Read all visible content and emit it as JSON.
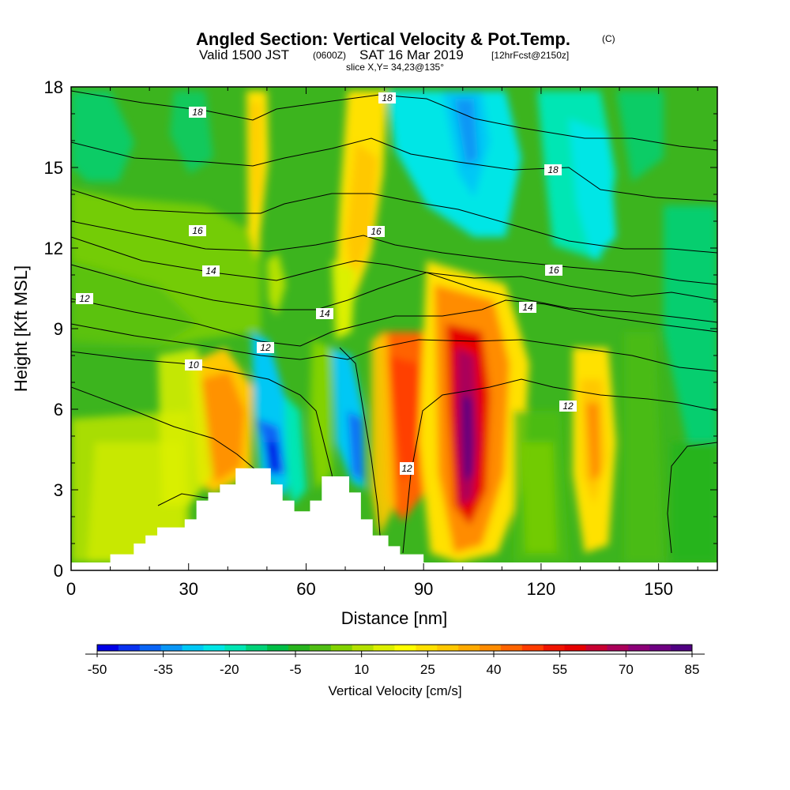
{
  "header": {
    "title_main": "Angled Section: Vertical Velocity & Pot.Temp.",
    "copyright": "(C)",
    "valid_prefix": "Valid 1500 JST",
    "valid_utc": "(0600Z)",
    "valid_date": "SAT 16 Mar 2019",
    "forecast": "[12hrFcst@2150z]",
    "slice": "slice X,Y= 34,23@135°"
  },
  "chart_data": {
    "type": "heatmap",
    "xlabel": "Distance [nm]",
    "ylabel": "Height [Kft MSL]",
    "xlim": [
      0,
      165
    ],
    "ylim": [
      0,
      18
    ],
    "x_ticks": [
      "0",
      "30",
      "60",
      "90",
      "120",
      "150"
    ],
    "x_tick_values": [
      0,
      30,
      60,
      90,
      120,
      150
    ],
    "y_ticks": [
      "0",
      "3",
      "6",
      "9",
      "12",
      "15",
      "18"
    ],
    "y_tick_values": [
      0,
      3,
      6,
      9,
      12,
      15,
      18
    ],
    "grid": false,
    "colorbar": {
      "label": "Vertical Velocity [cm/s]",
      "levels": [
        -50,
        -45,
        -40,
        -35,
        -30,
        -25,
        -20,
        -15,
        -10,
        -5,
        0,
        5,
        10,
        15,
        20,
        25,
        30,
        35,
        40,
        45,
        50,
        55,
        60,
        65,
        70,
        75,
        80,
        85
      ],
      "tick_labels": [
        "-50",
        "-35",
        "-20",
        "-5",
        "10",
        "25",
        "40",
        "55",
        "70",
        "85"
      ],
      "tick_values": [
        -50,
        -35,
        -20,
        -5,
        10,
        25,
        40,
        55,
        70,
        85
      ],
      "colors": [
        "#0000e6",
        "#0a32f0",
        "#0a64f5",
        "#0a96f5",
        "#00c8f5",
        "#00e6e6",
        "#00e6b4",
        "#00d278",
        "#00be46",
        "#28b41e",
        "#50be14",
        "#82d200",
        "#b4e100",
        "#dcf000",
        "#ffff00",
        "#ffe100",
        "#ffc800",
        "#ffaa00",
        "#ff8c00",
        "#ff6400",
        "#ff3c00",
        "#f01400",
        "#e60000",
        "#c80032",
        "#aa005a",
        "#8c0078",
        "#6e0082",
        "#500082"
      ]
    },
    "series_potential_temperature_contours": {
      "units": "theta label",
      "labels": [
        {
          "text": "18",
          "x": 32,
          "y": 17.4
        },
        {
          "text": "18",
          "x": 81,
          "y": 17.7
        },
        {
          "text": "18",
          "x": 124,
          "y": 15.0
        },
        {
          "text": "16",
          "x": 32,
          "y": 12.8
        },
        {
          "text": "16",
          "x": 78,
          "y": 12.7
        },
        {
          "text": "16",
          "x": 124,
          "y": 11.5
        },
        {
          "text": "14",
          "x": 36,
          "y": 11.5
        },
        {
          "text": "14",
          "x": 65,
          "y": 9.8
        },
        {
          "text": "14",
          "x": 117,
          "y": 10.0
        },
        {
          "text": "12",
          "x": 3,
          "y": 10.3
        },
        {
          "text": "12",
          "x": 50,
          "y": 8.5
        },
        {
          "text": "12",
          "x": 86,
          "y": 4.0
        },
        {
          "text": "12",
          "x": 127,
          "y": 6.2
        },
        {
          "text": "10",
          "x": 31,
          "y": 7.7
        }
      ]
    },
    "terrain_profile": [
      [
        10,
        0.3
      ],
      [
        10,
        0.6
      ],
      [
        16,
        0.6
      ],
      [
        16,
        1.0
      ],
      [
        19,
        1.0
      ],
      [
        19,
        1.3
      ],
      [
        22,
        1.3
      ],
      [
        22,
        1.6
      ],
      [
        29,
        1.6
      ],
      [
        29,
        1.9
      ],
      [
        32,
        1.9
      ],
      [
        32,
        2.6
      ],
      [
        35,
        2.6
      ],
      [
        35,
        2.9
      ],
      [
        38,
        2.9
      ],
      [
        38,
        3.2
      ],
      [
        42,
        3.2
      ],
      [
        42,
        3.8
      ],
      [
        51,
        3.8
      ],
      [
        51,
        3.2
      ],
      [
        54,
        3.2
      ],
      [
        54,
        2.6
      ],
      [
        57,
        2.6
      ],
      [
        57,
        2.2
      ],
      [
        61,
        2.2
      ],
      [
        61,
        2.6
      ],
      [
        64,
        2.6
      ],
      [
        64,
        3.5
      ],
      [
        71,
        3.5
      ],
      [
        71,
        2.9
      ],
      [
        74,
        2.9
      ],
      [
        74,
        1.9
      ],
      [
        77,
        1.9
      ],
      [
        77,
        1.3
      ],
      [
        81,
        1.3
      ],
      [
        81,
        0.9
      ],
      [
        84,
        0.9
      ],
      [
        84,
        0.6
      ],
      [
        90,
        0.6
      ],
      [
        90,
        0.3
      ]
    ]
  }
}
